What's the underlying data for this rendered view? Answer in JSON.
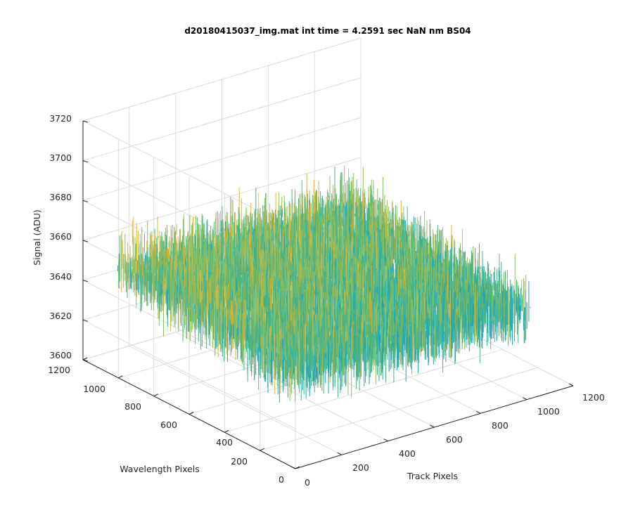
{
  "figure": {
    "background": "#ffffff",
    "grid_color": "#dcdcdc",
    "axis_color": "#262626"
  },
  "chart_data": {
    "type": "surface",
    "title": "d20180415037_img.mat int time = 4.2591 sec  NaN nm BS04",
    "xlabel": "Track Pixels",
    "ylabel": "Wavelength Pixels",
    "zlabel": "Signal (ADU)",
    "xlim": [
      0,
      1200
    ],
    "ylim": [
      0,
      1200
    ],
    "zlim": [
      3600,
      3720
    ],
    "x_ticks": [
      "0",
      "200",
      "400",
      "600",
      "800",
      "1000",
      "1200"
    ],
    "y_ticks": [
      "0",
      "200",
      "400",
      "600",
      "800",
      "1000",
      "1200"
    ],
    "z_ticks": [
      "3600",
      "3620",
      "3640",
      "3660",
      "3680",
      "3700",
      "3720"
    ],
    "grid": true,
    "view": "3-D perspective, azimuth -37.5, elevation 30",
    "data_extent": {
      "x": [
        1,
        1024
      ],
      "y": [
        1,
        1024
      ]
    },
    "signal": {
      "mean": 3645,
      "min": 3610,
      "max": 3700,
      "pattern": "noisy, near-flat sheet, slightly higher toward the back"
    },
    "colormap": [
      "#0f7fd9",
      "#1a96c9",
      "#20a8b2",
      "#4bb584",
      "#8fbd5d",
      "#d8b83a",
      "#f5c52a"
    ]
  }
}
